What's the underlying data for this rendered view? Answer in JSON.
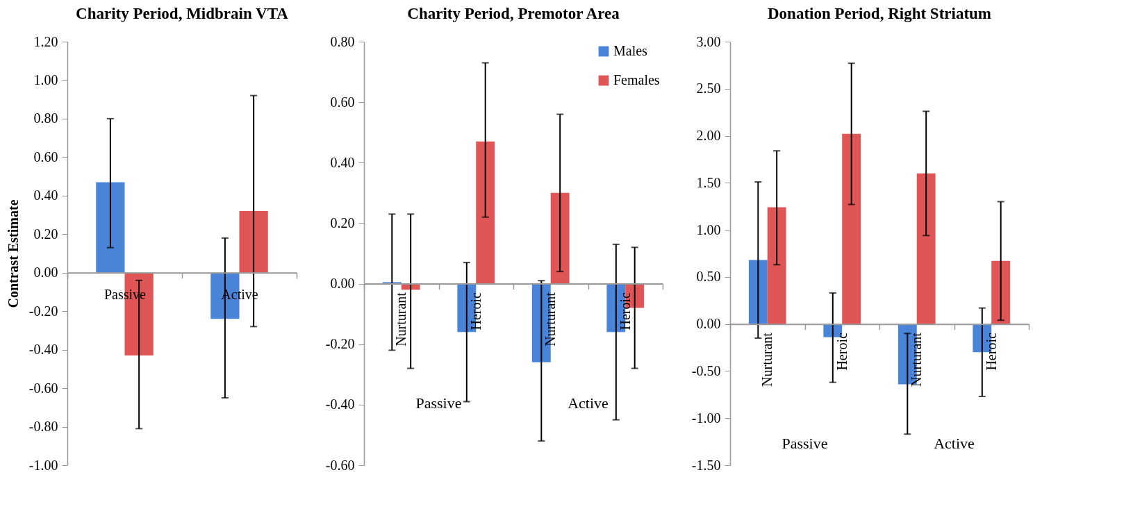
{
  "chart_data": [
    {
      "type": "bar",
      "title": "Charity Period, Midbrain VTA",
      "ylabel": "Contrast Estimate",
      "categories": [
        "Passive",
        "Active"
      ],
      "series": [
        {
          "color": "#4a84d8",
          "values": [
            0.47,
            -0.24
          ],
          "errors": [
            [
              0.13,
              0.8
            ],
            [
              -0.65,
              0.18
            ]
          ]
        },
        {
          "color": "#e05555",
          "values": [
            -0.43,
            0.32
          ],
          "errors": [
            [
              -0.81,
              -0.04
            ],
            [
              -0.28,
              0.92
            ]
          ]
        }
      ],
      "ylim": [
        -1.0,
        1.2
      ],
      "yticks": [
        {
          "value": -1.0,
          "label": "-1.00"
        },
        {
          "value": -0.8,
          "label": "-0.80"
        },
        {
          "value": -0.6,
          "label": "-0.60"
        },
        {
          "value": -0.4,
          "label": "-0.40"
        },
        {
          "value": -0.2,
          "label": "-0.20"
        },
        {
          "value": 0,
          "label": "0.00"
        },
        {
          "value": 0.2,
          "label": "0.20"
        },
        {
          "value": 0.4,
          "label": "0.40"
        },
        {
          "value": 0.6,
          "label": "0.60"
        },
        {
          "value": 0.8,
          "label": "0.80"
        },
        {
          "value": 1.0,
          "label": "1.00"
        },
        {
          "value": 1.2,
          "label": "1.20"
        }
      ],
      "grid": false
    },
    {
      "type": "bar",
      "title": "Charity Period, Premotor Area",
      "categories": [
        "Nurturant",
        "Heroic",
        "Nurturant",
        "Heroic"
      ],
      "annotations": [
        "Passive",
        "Active"
      ],
      "series": [
        {
          "name": "Males",
          "color": "#4a84d8",
          "values": [
            0.005,
            -0.16,
            -0.26,
            -0.16
          ],
          "errors": [
            [
              -0.22,
              0.23
            ],
            [
              -0.39,
              0.07
            ],
            [
              -0.52,
              0.01
            ],
            [
              -0.45,
              0.13
            ]
          ]
        },
        {
          "name": "Females",
          "color": "#e05555",
          "values": [
            -0.02,
            0.47,
            0.3,
            -0.08
          ],
          "errors": [
            [
              -0.28,
              0.23
            ],
            [
              0.22,
              0.73
            ],
            [
              0.04,
              0.56
            ],
            [
              -0.28,
              0.12
            ]
          ]
        }
      ],
      "ylim": [
        -0.6,
        0.8
      ],
      "yticks": [
        {
          "value": -0.6,
          "label": "-0.60"
        },
        {
          "value": -0.4,
          "label": "-0.40"
        },
        {
          "value": -0.2,
          "label": "-0.20"
        },
        {
          "value": 0,
          "label": "0.00"
        },
        {
          "value": 0.2,
          "label": "0.20"
        },
        {
          "value": 0.4,
          "label": "0.40"
        },
        {
          "value": 0.6,
          "label": "0.60"
        },
        {
          "value": 0.8,
          "label": "0.80"
        }
      ],
      "grid": false,
      "legend": "top right"
    },
    {
      "type": "bar",
      "title": "Donation Period, Right Striatum",
      "categories": [
        "Nurturant",
        "Heroic",
        "Nurturant",
        "Heroic"
      ],
      "annotations": [
        "Passive",
        "Active"
      ],
      "series": [
        {
          "color": "#4a84d8",
          "values": [
            0.68,
            -0.14,
            -0.64,
            -0.3
          ],
          "errors": [
            [
              -0.15,
              1.51
            ],
            [
              -0.62,
              0.33
            ],
            [
              -1.17,
              -0.1
            ],
            [
              -0.77,
              0.17
            ]
          ]
        },
        {
          "color": "#e05555",
          "values": [
            1.24,
            2.02,
            1.6,
            0.67
          ],
          "errors": [
            [
              0.63,
              1.84
            ],
            [
              1.27,
              2.77
            ],
            [
              0.94,
              2.26
            ],
            [
              0.04,
              1.3
            ]
          ]
        }
      ],
      "ylim": [
        -1.5,
        3.0
      ],
      "yticks": [
        {
          "value": -1.5,
          "label": "-1.50"
        },
        {
          "value": -1.0,
          "label": "-1.00"
        },
        {
          "value": -0.5,
          "label": "-0.50"
        },
        {
          "value": 0,
          "label": "0.00"
        },
        {
          "value": 0.5,
          "label": "0.50"
        },
        {
          "value": 1.0,
          "label": "1.00"
        },
        {
          "value": 1.5,
          "label": "1.50"
        },
        {
          "value": 2.0,
          "label": "2.00"
        },
        {
          "value": 2.5,
          "label": "2.50"
        },
        {
          "value": 3.0,
          "label": "3.00"
        }
      ],
      "grid": false
    }
  ]
}
